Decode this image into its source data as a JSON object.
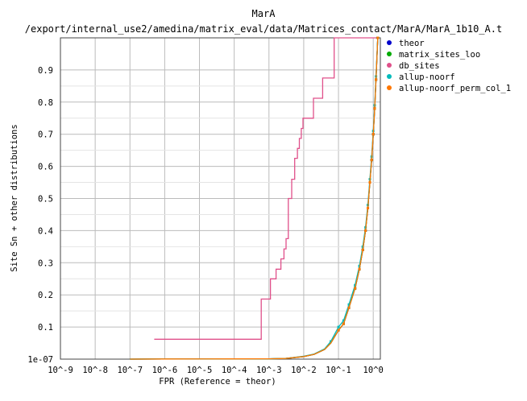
{
  "chart_data": {
    "type": "line",
    "title": "MarA",
    "subtitle": "/export/internal_use2/amedina/matrix_eval/data/Matrices_contact/MarA/MarA_1b10_A.t",
    "xlabel": "FPR (Reference = theor)",
    "ylabel": "Site Sn + other distributions",
    "x_scale": "log",
    "xlim": [
      1e-09,
      1.6
    ],
    "ylim": [
      1e-07,
      1.0
    ],
    "x_ticks": [
      {
        "value": 1e-09,
        "label": "10^-9"
      },
      {
        "value": 1e-08,
        "label": "10^-8"
      },
      {
        "value": 1e-07,
        "label": "10^-7"
      },
      {
        "value": 1e-06,
        "label": "10^-6"
      },
      {
        "value": 1e-05,
        "label": "10^-5"
      },
      {
        "value": 0.0001,
        "label": "10^-4"
      },
      {
        "value": 0.001,
        "label": "10^-3"
      },
      {
        "value": 0.01,
        "label": "10^-2"
      },
      {
        "value": 0.1,
        "label": "10^-1"
      },
      {
        "value": 1,
        "label": "10^0"
      }
    ],
    "y_ticks": [
      {
        "value": 1e-07,
        "label": "1e-07"
      },
      {
        "value": 0.1,
        "label": "0.1"
      },
      {
        "value": 0.2,
        "label": "0.2"
      },
      {
        "value": 0.3,
        "label": "0.3"
      },
      {
        "value": 0.4,
        "label": "0.4"
      },
      {
        "value": 0.5,
        "label": "0.5"
      },
      {
        "value": 0.6,
        "label": "0.6"
      },
      {
        "value": 0.7,
        "label": "0.7"
      },
      {
        "value": 0.8,
        "label": "0.8"
      },
      {
        "value": 0.9,
        "label": "0.9"
      }
    ],
    "grid": true,
    "legend_position": "right",
    "series": [
      {
        "name": "theor",
        "color": "#0000cc",
        "x": [
          1e-07,
          1e-06,
          0.0001,
          0.001,
          0.003,
          0.01,
          0.02,
          0.04,
          0.06,
          0.1,
          0.14,
          0.2,
          0.3,
          0.4,
          0.5,
          0.6,
          0.7,
          0.8,
          0.9,
          1.0,
          1.1,
          1.2,
          1.35
        ],
        "y": [
          0,
          0.0005,
          0.0008,
          0.001,
          0.002,
          0.008,
          0.015,
          0.03,
          0.05,
          0.09,
          0.11,
          0.16,
          0.22,
          0.28,
          0.34,
          0.4,
          0.47,
          0.55,
          0.62,
          0.7,
          0.78,
          0.87,
          1.0
        ]
      },
      {
        "name": "matrix_sites_loo",
        "color": "#00aa00",
        "x": [
          1e-07,
          1e-06,
          0.0001,
          0.001,
          0.003,
          0.01,
          0.02,
          0.04,
          0.06,
          0.1,
          0.14,
          0.2,
          0.3,
          0.4,
          0.5,
          0.6,
          0.7,
          0.8,
          0.9,
          1.0,
          1.1,
          1.2,
          1.35
        ],
        "y": [
          0,
          0.0005,
          0.0008,
          0.001,
          0.002,
          0.008,
          0.015,
          0.03,
          0.05,
          0.09,
          0.11,
          0.16,
          0.22,
          0.28,
          0.34,
          0.4,
          0.47,
          0.55,
          0.62,
          0.7,
          0.78,
          0.87,
          1.0
        ]
      },
      {
        "name": "db_sites",
        "color": "#e0508a",
        "x": [
          5e-07,
          0.0006,
          0.0006,
          0.0011,
          0.0011,
          0.0016,
          0.0016,
          0.0022,
          0.0022,
          0.0027,
          0.0027,
          0.0031,
          0.0031,
          0.0036,
          0.0036,
          0.0045,
          0.0045,
          0.0055,
          0.0055,
          0.0066,
          0.0066,
          0.0075,
          0.0075,
          0.0085,
          0.0085,
          0.0095,
          0.0095,
          0.011,
          0.011,
          0.019,
          0.019,
          0.035,
          0.035,
          0.05,
          0.05,
          0.075,
          0.075,
          0.13,
          0.13,
          1.2
        ],
        "y": [
          0.062,
          0.062,
          0.187,
          0.187,
          0.25,
          0.25,
          0.28,
          0.28,
          0.312,
          0.312,
          0.343,
          0.343,
          0.375,
          0.375,
          0.5,
          0.5,
          0.56,
          0.56,
          0.625,
          0.625,
          0.656,
          0.656,
          0.687,
          0.687,
          0.718,
          0.718,
          0.75,
          0.75,
          0.75,
          0.75,
          0.812,
          0.812,
          0.875,
          0.875,
          0.875,
          0.875,
          1.0,
          1.0,
          1.0,
          1.0
        ]
      },
      {
        "name": "allup-noorf",
        "color": "#00bbbb",
        "x": [
          1e-07,
          1e-06,
          0.0001,
          0.001,
          0.003,
          0.01,
          0.02,
          0.04,
          0.06,
          0.1,
          0.14,
          0.2,
          0.3,
          0.4,
          0.5,
          0.6,
          0.7,
          0.8,
          0.9,
          1.0,
          1.1,
          1.2,
          1.35
        ],
        "y": [
          0,
          0.0005,
          0.0008,
          0.001,
          0.002,
          0.009,
          0.016,
          0.032,
          0.055,
          0.1,
          0.12,
          0.17,
          0.23,
          0.29,
          0.35,
          0.41,
          0.48,
          0.56,
          0.63,
          0.71,
          0.79,
          0.88,
          1.0
        ]
      },
      {
        "name": "allup-noorf_perm_col_1",
        "color": "#ff7700",
        "x": [
          1e-07,
          1e-06,
          0.0001,
          0.001,
          0.003,
          0.01,
          0.02,
          0.04,
          0.06,
          0.1,
          0.14,
          0.2,
          0.3,
          0.4,
          0.5,
          0.6,
          0.7,
          0.8,
          0.9,
          1.0,
          1.1,
          1.2,
          1.35
        ],
        "y": [
          0,
          0.0005,
          0.0008,
          0.001,
          0.002,
          0.008,
          0.015,
          0.03,
          0.05,
          0.09,
          0.11,
          0.16,
          0.22,
          0.28,
          0.34,
          0.4,
          0.47,
          0.55,
          0.62,
          0.7,
          0.78,
          0.87,
          1.0
        ]
      }
    ]
  }
}
